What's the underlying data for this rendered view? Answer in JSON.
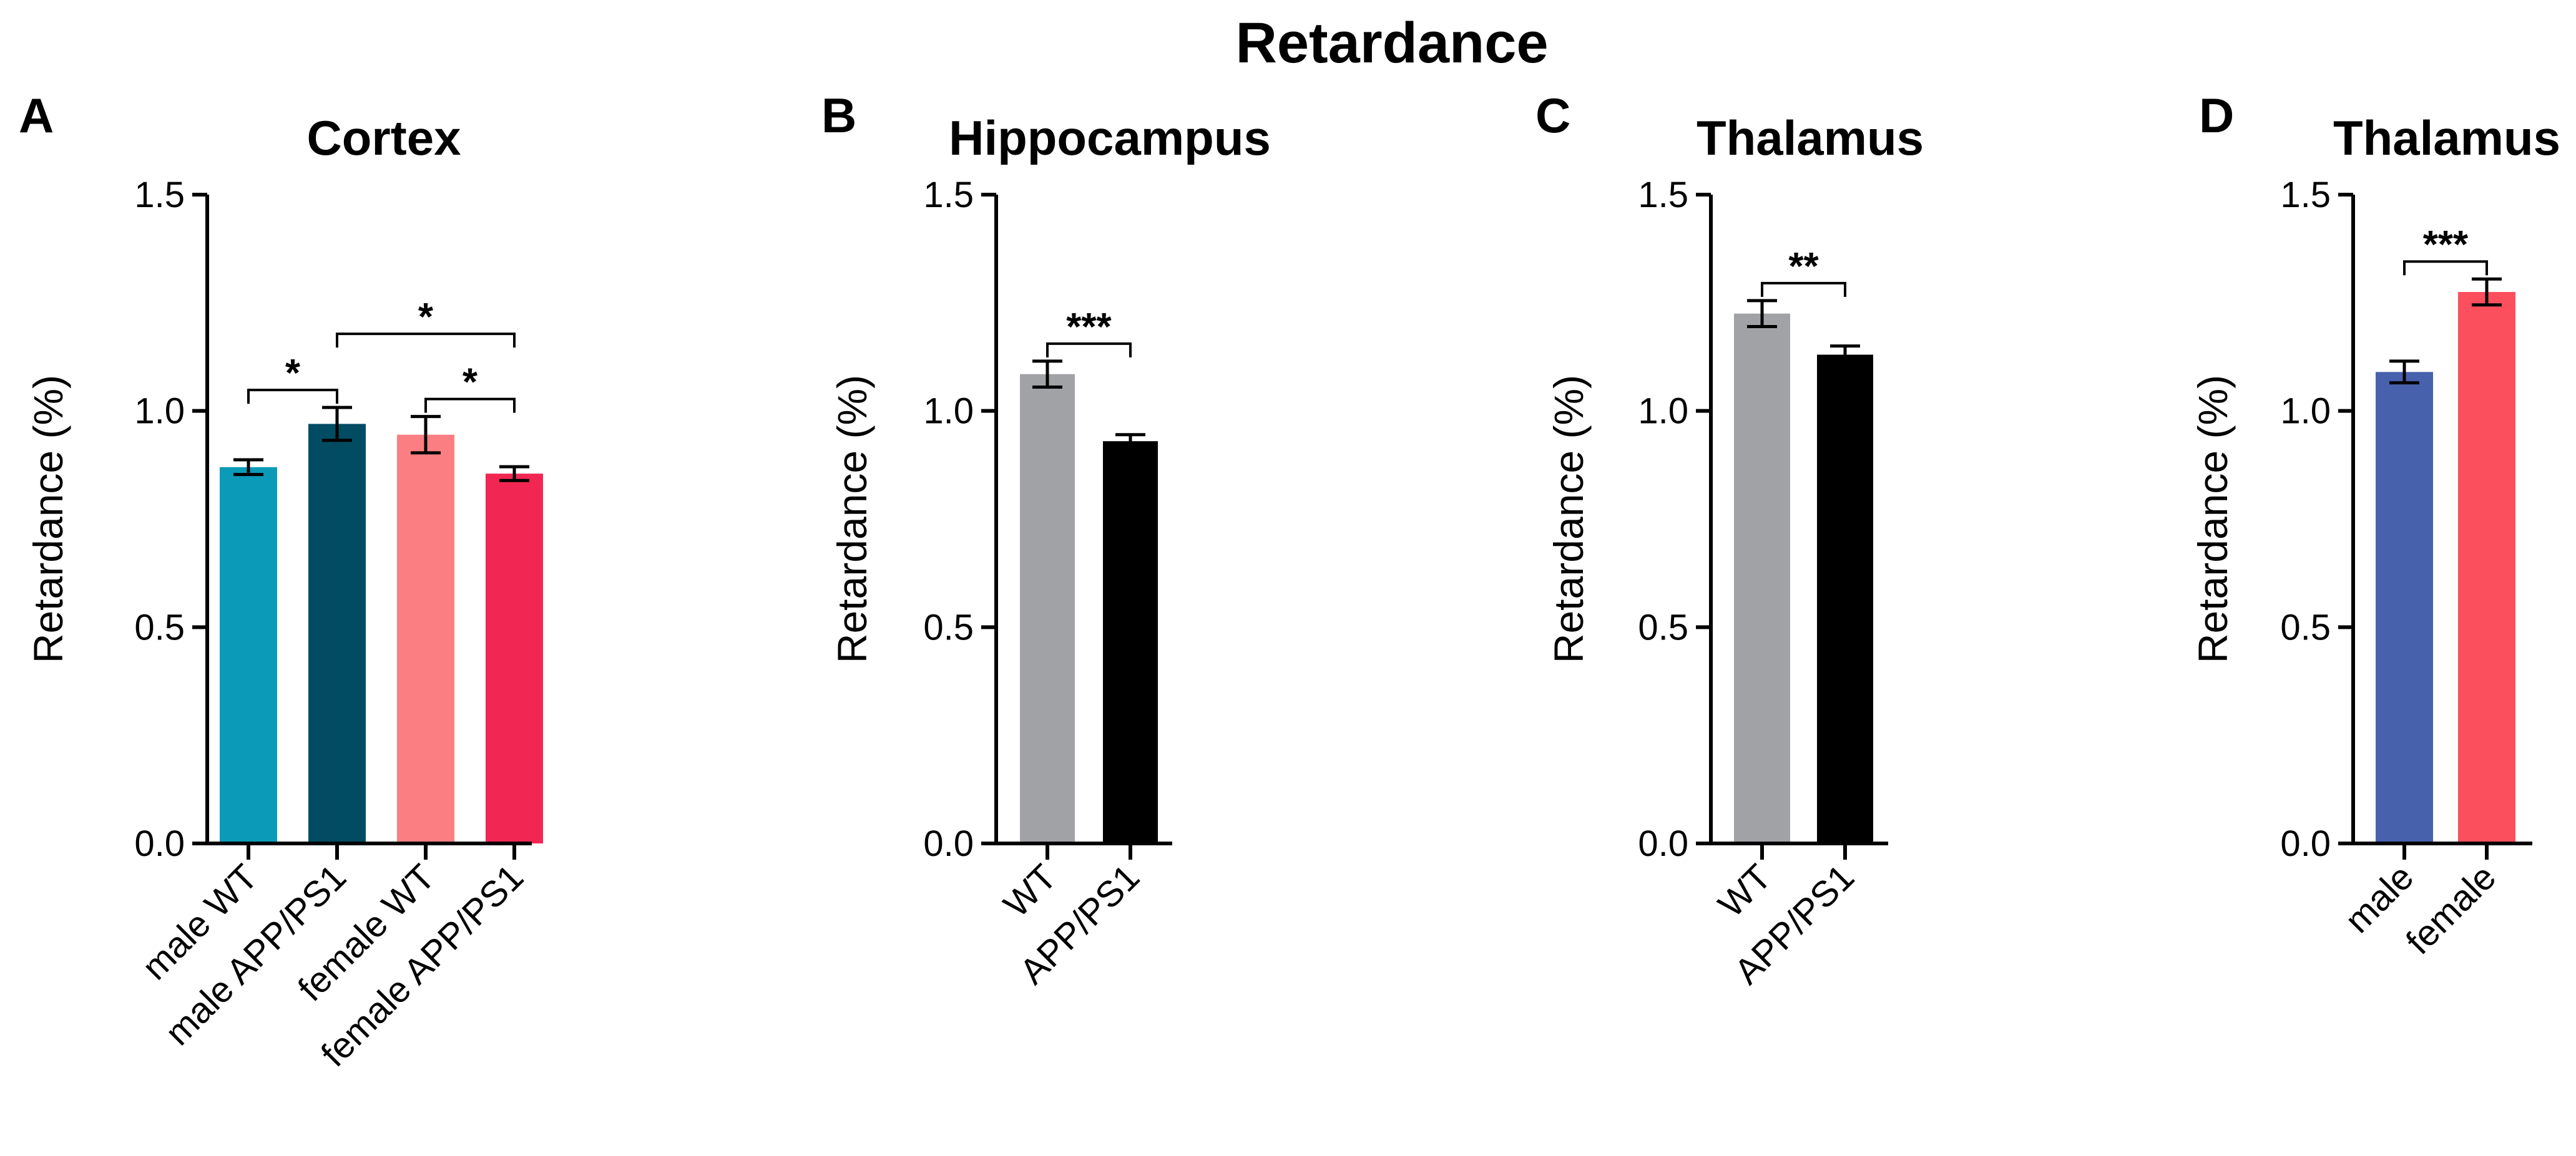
{
  "figure_title": "Retardance",
  "chart_data": [
    {
      "panel": "A",
      "type": "bar",
      "title": "Cortex",
      "ylabel": "Retardance (%)",
      "ylim": [
        0,
        1.5
      ],
      "yticks": [
        0.0,
        0.5,
        1.0,
        1.5
      ],
      "ytick_labels": [
        "0.0",
        "0.5",
        "1.0",
        "1.5"
      ],
      "categories": [
        "male WT",
        "male APP/PS1",
        "female WT",
        "female APP/PS1"
      ],
      "values": [
        0.87,
        0.97,
        0.945,
        0.855
      ],
      "errors": [
        0.017,
        0.038,
        0.042,
        0.016
      ],
      "colors": [
        "#0b9ab8",
        "#014c63",
        "#fb7e82",
        "#f22652"
      ],
      "significance": [
        {
          "from": 0,
          "to": 1,
          "label": "*"
        },
        {
          "from": 2,
          "to": 3,
          "label": "*"
        },
        {
          "from": 1,
          "to": 3,
          "label": "*"
        }
      ]
    },
    {
      "panel": "B",
      "type": "bar",
      "title": "Hippocampus",
      "ylabel": "Retardance (%)",
      "ylim": [
        0,
        1.5
      ],
      "yticks": [
        0.0,
        0.5,
        1.0,
        1.5
      ],
      "ytick_labels": [
        "0.0",
        "0.5",
        "1.0",
        "1.5"
      ],
      "categories": [
        "WT",
        "APP/PS1"
      ],
      "values": [
        1.085,
        0.93
      ],
      "errors": [
        0.03,
        0.015
      ],
      "colors": [
        "#a1a2a5",
        "#000000"
      ],
      "significance": [
        {
          "from": 0,
          "to": 1,
          "label": "***"
        }
      ]
    },
    {
      "panel": "C",
      "type": "bar",
      "title": "Thalamus",
      "ylabel": "Retardance (%)",
      "ylim": [
        0,
        1.5
      ],
      "yticks": [
        0.0,
        0.5,
        1.0,
        1.5
      ],
      "ytick_labels": [
        "0.0",
        "0.5",
        "1.0",
        "1.5"
      ],
      "categories": [
        "WT",
        "APP/PS1"
      ],
      "values": [
        1.225,
        1.13
      ],
      "errors": [
        0.03,
        0.02
      ],
      "colors": [
        "#a1a2a5",
        "#000000"
      ],
      "significance": [
        {
          "from": 0,
          "to": 1,
          "label": "**"
        }
      ]
    },
    {
      "panel": "D",
      "type": "bar",
      "title": "Thalamus",
      "ylabel": "Retardance (%)",
      "ylim": [
        0,
        1.5
      ],
      "yticks": [
        0.0,
        0.5,
        1.0,
        1.5
      ],
      "ytick_labels": [
        "0.0",
        "0.5",
        "1.0",
        "1.5"
      ],
      "categories": [
        "male",
        "female"
      ],
      "values": [
        1.09,
        1.275
      ],
      "errors": [
        0.025,
        0.03
      ],
      "colors": [
        "#4761ac",
        "#fc4f5e"
      ],
      "significance": [
        {
          "from": 0,
          "to": 1,
          "label": "***"
        }
      ]
    }
  ]
}
